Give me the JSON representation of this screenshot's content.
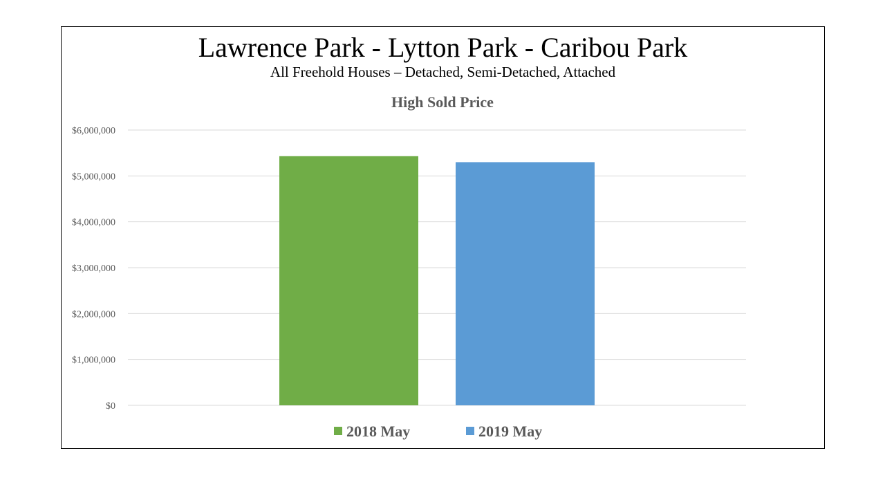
{
  "header": {
    "title": "Lawrence Park - Lytton Park - Caribou Park",
    "subtitle": "All Freehold Houses – Detached, Semi-Detached, Attached"
  },
  "colors": {
    "series_2018": "#70ad47",
    "series_2019": "#5b9bd5",
    "gridline": "#d9d9d9",
    "axis_text": "#595959",
    "chart_title": "#595959"
  },
  "chart_data": {
    "type": "bar",
    "title": "High Sold Price",
    "xlabel": "",
    "ylabel": "",
    "categories": [
      ""
    ],
    "series": [
      {
        "name": "2018 May",
        "values": [
          5430000
        ],
        "color": "#70ad47"
      },
      {
        "name": "2019 May",
        "values": [
          5300000
        ],
        "color": "#5b9bd5"
      }
    ],
    "ylim": [
      0,
      6000000
    ],
    "yticks": [
      0,
      1000000,
      2000000,
      3000000,
      4000000,
      5000000,
      6000000
    ],
    "ytick_labels": [
      "$0",
      "$1,000,000",
      "$2,000,000",
      "$3,000,000",
      "$4,000,000",
      "$5,000,000",
      "$6,000,000"
    ],
    "grid": true,
    "legend": "bottom"
  }
}
